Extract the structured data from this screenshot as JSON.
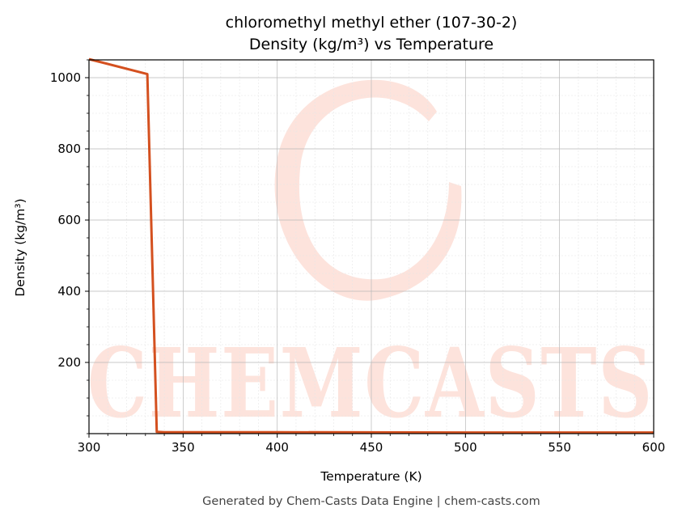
{
  "chart_data": {
    "type": "line",
    "title": "chloromethyl methyl ether (107-30-2)",
    "subtitle": "Density (kg/m³) vs Temperature",
    "xlabel": "Temperature (K)",
    "ylabel": "Density (kg/m³)",
    "xlim": [
      300,
      600
    ],
    "ylim": [
      0,
      1050
    ],
    "x_ticks": [
      300,
      350,
      400,
      450,
      500,
      550,
      600
    ],
    "y_ticks": [
      200,
      400,
      600,
      800,
      1000
    ],
    "grid": true,
    "legend": "none",
    "series": [
      {
        "color": "#d4501f",
        "x": [
          300,
          331,
          336,
          340,
          400,
          500,
          600
        ],
        "y": [
          1052,
          1010,
          5,
          4,
          4,
          3,
          3
        ]
      }
    ],
    "watermark": "CHEMCASTS"
  },
  "footer": "Generated by Chem-Casts Data Engine | chem-casts.com"
}
